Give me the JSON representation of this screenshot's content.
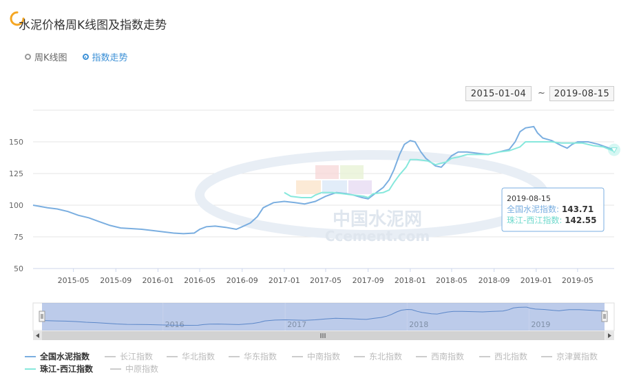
{
  "title": "水泥价格周K线图及指数走势",
  "modes": [
    {
      "label": "周K线图",
      "active": false
    },
    {
      "label": "指数走势",
      "active": true
    }
  ],
  "date_from": "2015-01-04",
  "date_to": "2019-08-15",
  "range_separator": "~",
  "watermark": {
    "cn": "中国水泥网",
    "en": "Ccement.com"
  },
  "colors": {
    "national": "#7aaee0",
    "zhujiang": "#86e8dc",
    "legend_off": "#cccccc"
  },
  "tooltip": {
    "date": "2019-08-15",
    "items": [
      {
        "name": "全国水泥指数",
        "value": "143.71",
        "color": "#7aaee0"
      },
      {
        "name": "珠江-西江指数",
        "value": "142.55",
        "color": "#86e8dc"
      }
    ]
  },
  "navigator": {
    "year_labels": [
      "2016",
      "2017",
      "2018",
      "2019"
    ]
  },
  "legend": [
    {
      "name": "全国水泥指数",
      "on": true
    },
    {
      "name": "长江指数",
      "on": false
    },
    {
      "name": "华北指数",
      "on": false
    },
    {
      "name": "华东指数",
      "on": false
    },
    {
      "name": "中南指数",
      "on": false
    },
    {
      "name": "东北指数",
      "on": false
    },
    {
      "name": "西南指数",
      "on": false
    },
    {
      "name": "西北指数",
      "on": false
    },
    {
      "name": "京津冀指数",
      "on": false
    },
    {
      "name": "珠江-西江指数",
      "on": true
    },
    {
      "name": "中原指数",
      "on": false
    }
  ],
  "chart_data": {
    "type": "line",
    "title": "",
    "xlabel": "",
    "ylabel": "",
    "x_ticks": [
      "2015-05",
      "2015-09",
      "2016-01",
      "2016-05",
      "2016-09",
      "2017-01",
      "2017-05",
      "2017-09",
      "2018-01",
      "2018-05",
      "2018-09",
      "2019-01",
      "2019-05"
    ],
    "y_ticks": [
      50,
      75,
      100,
      125,
      150
    ],
    "ylim": [
      50,
      175
    ],
    "xlim": [
      "2015-01-04",
      "2019-08-15"
    ],
    "grid": true,
    "series": [
      {
        "name": "全国水泥指数",
        "color": "#7aaee0",
        "points": [
          [
            "2015-01-04",
            100
          ],
          [
            "2015-02-15",
            98
          ],
          [
            "2015-03-15",
            97
          ],
          [
            "2015-04-15",
            95
          ],
          [
            "2015-05-15",
            92
          ],
          [
            "2015-06-15",
            90
          ],
          [
            "2015-07-15",
            87
          ],
          [
            "2015-08-15",
            84
          ],
          [
            "2015-09-15",
            82
          ],
          [
            "2015-10-15",
            81.5
          ],
          [
            "2015-11-15",
            81
          ],
          [
            "2015-12-15",
            80
          ],
          [
            "2016-01-15",
            79
          ],
          [
            "2016-02-15",
            78
          ],
          [
            "2016-03-15",
            77.5
          ],
          [
            "2016-04-15",
            78
          ],
          [
            "2016-05-01",
            81
          ],
          [
            "2016-05-20",
            83
          ],
          [
            "2016-06-15",
            83.5
          ],
          [
            "2016-07-15",
            82.5
          ],
          [
            "2016-08-15",
            81
          ],
          [
            "2016-09-01",
            83
          ],
          [
            "2016-09-25",
            86
          ],
          [
            "2016-10-15",
            91
          ],
          [
            "2016-11-01",
            98
          ],
          [
            "2016-12-01",
            102
          ],
          [
            "2017-01-01",
            103
          ],
          [
            "2017-02-01",
            102
          ],
          [
            "2017-03-01",
            101
          ],
          [
            "2017-04-01",
            103
          ],
          [
            "2017-05-01",
            107
          ],
          [
            "2017-06-01",
            110
          ],
          [
            "2017-07-01",
            109
          ],
          [
            "2017-07-20",
            108
          ],
          [
            "2017-08-15",
            106
          ],
          [
            "2017-09-01",
            105
          ],
          [
            "2017-09-25",
            110
          ],
          [
            "2017-10-15",
            114
          ],
          [
            "2017-11-01",
            120
          ],
          [
            "2017-11-15",
            128
          ],
          [
            "2017-12-01",
            140
          ],
          [
            "2017-12-15",
            148
          ],
          [
            "2018-01-01",
            151
          ],
          [
            "2018-01-15",
            150
          ],
          [
            "2018-02-01",
            142
          ],
          [
            "2018-02-15",
            137
          ],
          [
            "2018-03-01",
            134
          ],
          [
            "2018-03-15",
            131
          ],
          [
            "2018-04-01",
            130
          ],
          [
            "2018-04-15",
            134
          ],
          [
            "2018-05-01",
            139
          ],
          [
            "2018-05-20",
            142
          ],
          [
            "2018-06-15",
            142
          ],
          [
            "2018-07-15",
            141
          ],
          [
            "2018-08-15",
            140
          ],
          [
            "2018-09-15",
            142
          ],
          [
            "2018-10-15",
            144
          ],
          [
            "2018-11-01",
            150
          ],
          [
            "2018-11-15",
            158
          ],
          [
            "2018-12-01",
            161
          ],
          [
            "2018-12-25",
            162
          ],
          [
            "2019-01-05",
            157
          ],
          [
            "2019-01-20",
            153
          ],
          [
            "2019-02-15",
            151
          ],
          [
            "2019-03-15",
            147
          ],
          [
            "2019-04-01",
            145
          ],
          [
            "2019-04-15",
            148
          ],
          [
            "2019-05-01",
            150
          ],
          [
            "2019-06-01",
            150
          ],
          [
            "2019-07-01",
            148
          ],
          [
            "2019-08-01",
            145
          ],
          [
            "2019-08-15",
            143.71
          ]
        ]
      },
      {
        "name": "珠江-西江指数",
        "color": "#86e8dc",
        "points": [
          [
            "2017-01-01",
            110
          ],
          [
            "2017-01-20",
            107
          ],
          [
            "2017-02-20",
            106
          ],
          [
            "2017-03-20",
            106
          ],
          [
            "2017-04-01",
            108
          ],
          [
            "2017-04-20",
            110
          ],
          [
            "2017-05-20",
            110
          ],
          [
            "2017-06-20",
            109
          ],
          [
            "2017-07-20",
            108
          ],
          [
            "2017-08-20",
            107
          ],
          [
            "2017-09-01",
            106
          ],
          [
            "2017-09-15",
            109
          ],
          [
            "2017-10-15",
            110
          ],
          [
            "2017-11-01",
            112
          ],
          [
            "2017-11-15",
            118
          ],
          [
            "2017-12-01",
            124
          ],
          [
            "2017-12-20",
            130
          ],
          [
            "2018-01-01",
            136
          ],
          [
            "2018-01-20",
            136
          ],
          [
            "2018-02-20",
            135
          ],
          [
            "2018-03-15",
            132
          ],
          [
            "2018-04-15",
            134
          ],
          [
            "2018-05-01",
            137
          ],
          [
            "2018-05-20",
            138
          ],
          [
            "2018-06-15",
            140
          ],
          [
            "2018-07-15",
            140
          ],
          [
            "2018-08-15",
            140
          ],
          [
            "2018-09-15",
            142
          ],
          [
            "2018-10-15",
            143
          ],
          [
            "2018-11-15",
            146
          ],
          [
            "2018-12-01",
            150
          ],
          [
            "2019-01-15",
            150
          ],
          [
            "2019-02-15",
            150
          ],
          [
            "2019-03-15",
            149
          ],
          [
            "2019-04-15",
            149
          ],
          [
            "2019-05-15",
            149
          ],
          [
            "2019-06-15",
            147
          ],
          [
            "2019-07-15",
            146
          ],
          [
            "2019-08-01",
            144
          ],
          [
            "2019-08-15",
            142.55
          ]
        ]
      }
    ]
  }
}
